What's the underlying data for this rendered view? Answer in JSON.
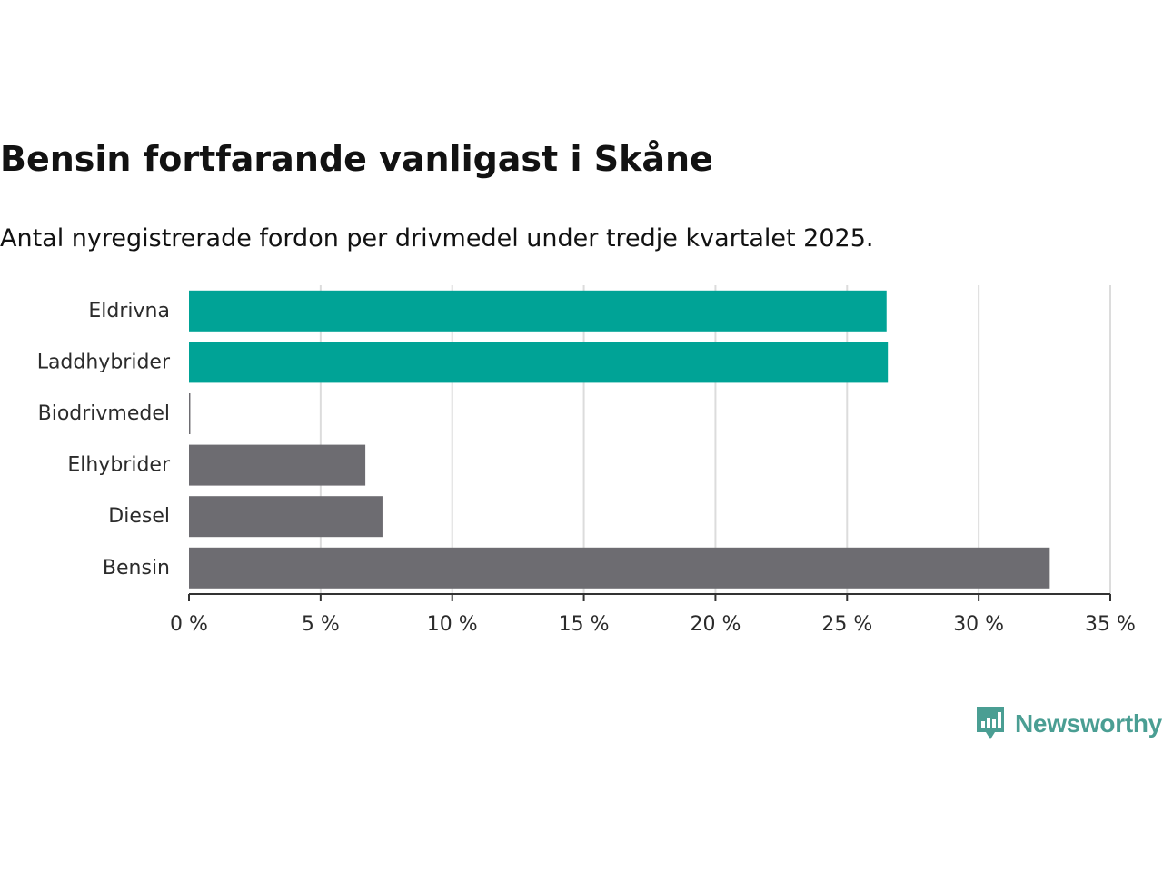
{
  "chart_data": {
    "type": "bar",
    "orientation": "horizontal",
    "title": "Bensin fortfarande vanligast i Skåne",
    "subtitle": "Antal nyregistrerade fordon per drivmedel under tredje kvartalet 2025.",
    "categories": [
      "Eldrivna",
      "Laddhybrider",
      "Biodrivmedel",
      "Elhybrider",
      "Diesel",
      "Bensin"
    ],
    "values": [
      26.5,
      26.55,
      0.05,
      6.7,
      7.35,
      32.7
    ],
    "bar_colors": [
      "#00a396",
      "#00a396",
      "#6d6c71",
      "#6d6c71",
      "#6d6c71",
      "#6d6c71"
    ],
    "xlim": [
      0,
      35
    ],
    "xticks": [
      0,
      5,
      10,
      15,
      20,
      25,
      30,
      35
    ],
    "xtick_labels": [
      "0 %",
      "5 %",
      "10 %",
      "15 %",
      "20 %",
      "25 %",
      "30 %",
      "35 %"
    ],
    "xlabel": "",
    "ylabel": "",
    "grid": true
  },
  "branding": {
    "logo_text": "Newsworthy",
    "logo_color": "#4a9e93"
  }
}
